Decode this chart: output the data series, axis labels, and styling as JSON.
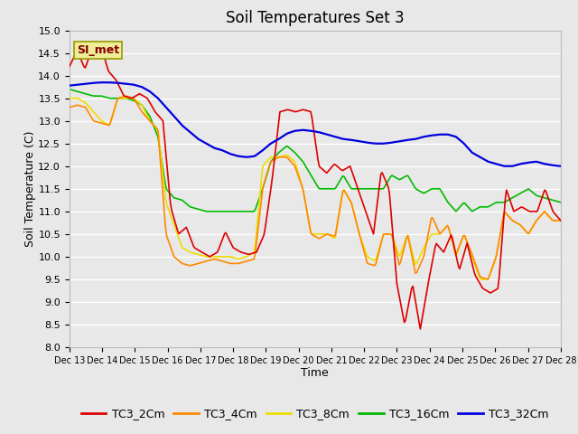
{
  "title": "Soil Temperatures Set 3",
  "xlabel": "Time",
  "ylabel": "Soil Temperature (C)",
  "ylim": [
    8.0,
    15.0
  ],
  "yticks": [
    8.0,
    8.5,
    9.0,
    9.5,
    10.0,
    10.5,
    11.0,
    11.5,
    12.0,
    12.5,
    13.0,
    13.5,
    14.0,
    14.5,
    15.0
  ],
  "xtick_labels": [
    "Dec 13",
    "Dec 14",
    "Dec 15",
    "Dec 16",
    "Dec 17",
    "Dec 18",
    "Dec 19",
    "Dec 20",
    "Dec 21",
    "Dec 22",
    "Dec 23",
    "Dec 24",
    "Dec 25",
    "Dec 26",
    "Dec 27",
    "Dec 28"
  ],
  "series_colors": {
    "TC3_2Cm": "#dd0000",
    "TC3_4Cm": "#ff8800",
    "TC3_8Cm": "#eedd00",
    "TC3_16Cm": "#00bb00",
    "TC3_32Cm": "#0000dd"
  },
  "annotation": {
    "text": "SI_met",
    "bg_color": "#eeee99",
    "border_color": "#999900",
    "text_color": "#880000",
    "fontsize": 9
  },
  "background_color": "#e8e8e8",
  "grid_color": "#ffffff",
  "title_fontsize": 12,
  "legend_fontsize": 9
}
